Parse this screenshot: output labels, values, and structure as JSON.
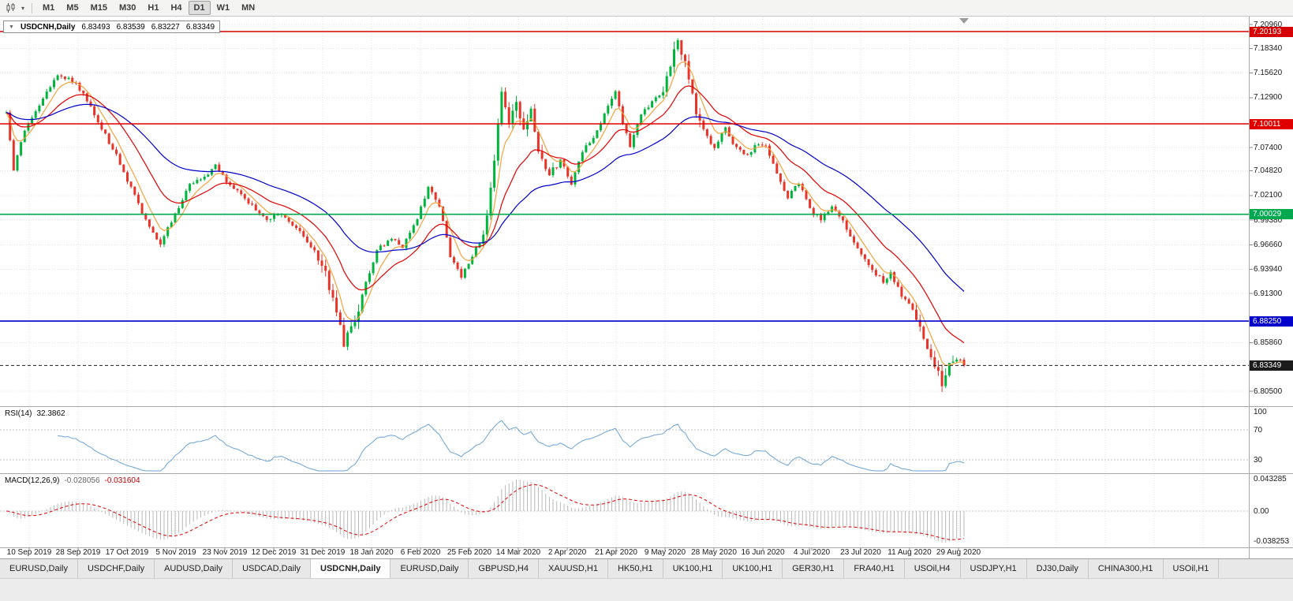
{
  "toolbar": {
    "timeframes": [
      "M1",
      "M5",
      "M15",
      "M30",
      "H1",
      "H4",
      "D1",
      "W1",
      "MN"
    ],
    "active": "D1"
  },
  "symbol_info": {
    "expander": "▼",
    "symbol": "USDCNH,Daily",
    "open": "6.83493",
    "high": "6.83539",
    "low": "6.83227",
    "close": "6.83349"
  },
  "price_axis": {
    "ticks": [
      "7.20960",
      "7.18340",
      "7.15620",
      "7.12900",
      "7.07400",
      "7.04820",
      "7.02100",
      "6.99380",
      "6.96660",
      "6.93940",
      "6.91300",
      "6.85860",
      "6.80500"
    ]
  },
  "levels": [
    {
      "label": "7.20193",
      "price": 7.20193,
      "color": "#d60000",
      "style": "solid"
    },
    {
      "label": "7.10011",
      "price": 7.10011,
      "color": "#e00000",
      "style": "solid"
    },
    {
      "label": "7.00029",
      "price": 7.00029,
      "color": "#00a94f",
      "style": "solid"
    },
    {
      "label": "6.88250",
      "price": 6.8825,
      "color": "#0000cc",
      "style": "solid"
    },
    {
      "label": "6.83349",
      "price": 6.83349,
      "color": "#1b1b1b",
      "style": "dashed"
    }
  ],
  "rsi_panel": {
    "name": "RSI(14)",
    "value": "32.3862",
    "axis_labels": [
      "100",
      "70",
      "30"
    ],
    "axis_values": [
      100,
      70,
      30
    ],
    "levels": [
      70,
      30
    ],
    "line_color": "#6ba3d6"
  },
  "macd_panel": {
    "name": "MACD(12,26,9)",
    "value_main": "-0.028056",
    "value_signal": "-0.031604",
    "axis_labels": [
      "0.043285",
      "0.00",
      "-0.038253"
    ],
    "axis_values": [
      0.043285,
      0,
      -0.038253
    ],
    "hist_color": "#b9b9b9",
    "signal_color": "#dd0000"
  },
  "date_axis": {
    "labels": [
      "10 Sep 2019",
      "28 Sep 2019",
      "17 Oct 2019",
      "5 Nov 2019",
      "23 Nov 2019",
      "12 Dec 2019",
      "31 Dec 2019",
      "18 Jan 2020",
      "6 Feb 2020",
      "25 Feb 2020",
      "14 Mar 2020",
      "2 Apr 2020",
      "21 Apr 2020",
      "9 May 2020",
      "28 May 2020",
      "16 Jun 2020",
      "4 Jul 2020",
      "23 Jul 2020",
      "11 Aug 2020",
      "29 Aug 2020"
    ]
  },
  "tabs": {
    "items": [
      "EURUSD,Daily",
      "USDCHF,Daily",
      "AUDUSD,Daily",
      "USDCAD,Daily",
      "USDCNH,Daily",
      "EURUSD,Daily",
      "GBPUSD,H4",
      "XAUUSD,H1",
      "HK50,H1",
      "UK100,H1",
      "UK100,H1",
      "GER30,H1",
      "FRA40,H1",
      "USOil,H4",
      "USDJPY,H1",
      "DJ30,Daily",
      "CHINA300,H1",
      "USOil,H1"
    ],
    "active_index": 4
  },
  "chart_data": {
    "type": "candlestick",
    "symbol": "USDCNH",
    "timeframe": "Daily",
    "displayed_ohlc": {
      "open": 6.83493,
      "high": 6.83539,
      "low": 6.83227,
      "close": 6.83349
    },
    "y_axis": {
      "min": 6.7886,
      "max": 7.2185
    },
    "x_axis": {
      "bars": 262,
      "first_label": "10 Sep 2019",
      "last_label": "29 Aug 2020"
    },
    "horizontal_lines": [
      7.20193,
      7.10011,
      7.00029,
      6.8825
    ],
    "candle_colors": {
      "up": "#00b43c",
      "down": "#e8352a"
    },
    "indicators": {
      "rsi": {
        "period": 14,
        "last_value": 32.3862
      },
      "macd": {
        "fast": 12,
        "slow": 26,
        "signal": 9,
        "last_main": -0.028056,
        "last_signal": -0.031604
      },
      "moving_averages": [
        {
          "period": 6,
          "color": "#f2a33c"
        },
        {
          "period": 18,
          "color": "#e00000"
        },
        {
          "period": 45,
          "color": "#0000cc"
        }
      ]
    },
    "price_path_anchors": [
      [
        0,
        7.112
      ],
      [
        2,
        7.05
      ],
      [
        5,
        7.092
      ],
      [
        10,
        7.128
      ],
      [
        14,
        7.155
      ],
      [
        19,
        7.145
      ],
      [
        22,
        7.125
      ],
      [
        26,
        7.095
      ],
      [
        30,
        7.065
      ],
      [
        35,
        7.02
      ],
      [
        39,
        6.985
      ],
      [
        42,
        6.968
      ],
      [
        46,
        7.0
      ],
      [
        50,
        7.035
      ],
      [
        54,
        7.04
      ],
      [
        57,
        7.055
      ],
      [
        60,
        7.035
      ],
      [
        63,
        7.025
      ],
      [
        67,
        7.01
      ],
      [
        71,
        6.995
      ],
      [
        75,
        7.0
      ],
      [
        79,
        6.985
      ],
      [
        83,
        6.965
      ],
      [
        86,
        6.945
      ],
      [
        90,
        6.895
      ],
      [
        92,
        6.855
      ],
      [
        95,
        6.885
      ],
      [
        98,
        6.925
      ],
      [
        101,
        6.96
      ],
      [
        105,
        6.975
      ],
      [
        108,
        6.965
      ],
      [
        112,
        6.995
      ],
      [
        115,
        7.03
      ],
      [
        118,
        7.01
      ],
      [
        121,
        6.955
      ],
      [
        124,
        6.93
      ],
      [
        127,
        6.955
      ],
      [
        130,
        6.975
      ],
      [
        133,
        7.06
      ],
      [
        135,
        7.14
      ],
      [
        137,
        7.1
      ],
      [
        139,
        7.13
      ],
      [
        141,
        7.09
      ],
      [
        143,
        7.115
      ],
      [
        145,
        7.07
      ],
      [
        148,
        7.045
      ],
      [
        151,
        7.06
      ],
      [
        154,
        7.035
      ],
      [
        157,
        7.07
      ],
      [
        160,
        7.085
      ],
      [
        163,
        7.11
      ],
      [
        166,
        7.135
      ],
      [
        168,
        7.1
      ],
      [
        170,
        7.075
      ],
      [
        173,
        7.11
      ],
      [
        176,
        7.125
      ],
      [
        179,
        7.14
      ],
      [
        181,
        7.16
      ],
      [
        183,
        7.195
      ],
      [
        185,
        7.165
      ],
      [
        187,
        7.13
      ],
      [
        190,
        7.09
      ],
      [
        193,
        7.075
      ],
      [
        196,
        7.095
      ],
      [
        198,
        7.08
      ],
      [
        202,
        7.065
      ],
      [
        204,
        7.075
      ],
      [
        207,
        7.075
      ],
      [
        210,
        7.045
      ],
      [
        213,
        7.02
      ],
      [
        216,
        7.035
      ],
      [
        219,
        7.005
      ],
      [
        222,
        6.995
      ],
      [
        225,
        7.01
      ],
      [
        227,
        7.0
      ],
      [
        230,
        6.975
      ],
      [
        233,
        6.955
      ],
      [
        236,
        6.94
      ],
      [
        239,
        6.925
      ],
      [
        241,
        6.935
      ],
      [
        244,
        6.91
      ],
      [
        247,
        6.895
      ],
      [
        249,
        6.875
      ],
      [
        252,
        6.845
      ],
      [
        255,
        6.815
      ],
      [
        257,
        6.838
      ],
      [
        259,
        6.842
      ],
      [
        261,
        6.8335
      ]
    ],
    "high_vol_ranges": [
      [
        85,
        96
      ],
      [
        130,
        150
      ],
      [
        178,
        190
      ],
      [
        248,
        258
      ]
    ],
    "last_close": 6.83349
  }
}
